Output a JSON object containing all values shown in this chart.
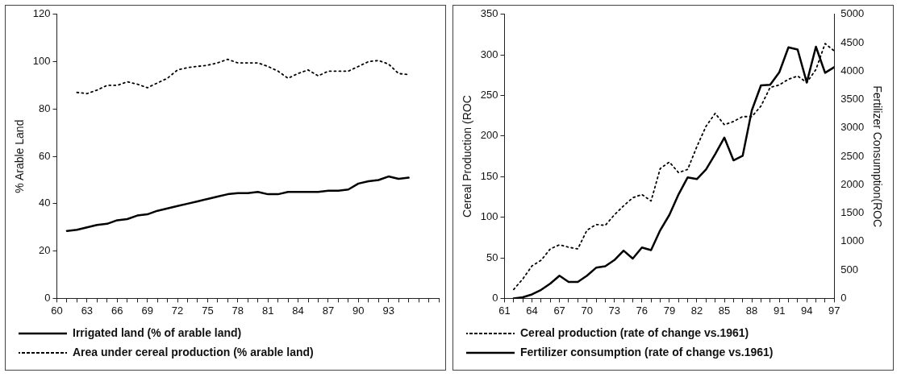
{
  "chart_data": [
    {
      "type": "line",
      "ylabel": "% Arable Land",
      "xlim": [
        60,
        98
      ],
      "ylim": [
        0,
        120
      ],
      "yticks": [
        0,
        20,
        40,
        60,
        80,
        100,
        120
      ],
      "xticks": [
        60,
        {
          "value": 61,
          "label": null
        },
        {
          "value": 62,
          "label": null
        },
        63,
        {
          "value": 64,
          "label": null
        },
        {
          "value": 65,
          "label": null
        },
        66,
        {
          "value": 67,
          "label": null
        },
        {
          "value": 68,
          "label": null
        },
        69,
        {
          "value": 70,
          "label": null
        },
        {
          "value": 71,
          "label": null
        },
        72,
        {
          "value": 73,
          "label": null
        },
        {
          "value": 74,
          "label": null
        },
        75,
        {
          "value": 76,
          "label": null
        },
        {
          "value": 77,
          "label": null
        },
        78,
        {
          "value": 79,
          "label": null
        },
        {
          "value": 80,
          "label": null
        },
        81,
        {
          "value": 82,
          "label": null
        },
        {
          "value": 83,
          "label": null
        },
        84,
        {
          "value": 85,
          "label": null
        },
        {
          "value": 86,
          "label": null
        },
        87,
        {
          "value": 88,
          "label": null
        },
        {
          "value": 89,
          "label": null
        },
        90,
        {
          "value": 91,
          "label": null
        },
        {
          "value": 92,
          "label": null
        },
        93,
        {
          "value": 94,
          "label": null
        },
        {
          "value": 95,
          "label": null
        },
        {
          "value": 96,
          "label": null
        },
        {
          "value": 97,
          "label": null
        },
        {
          "value": 98,
          "label": null
        }
      ],
      "grid": false,
      "legend": "bottom",
      "marker": "none",
      "series": [
        {
          "name": "Irrigated land (% of arable land)",
          "color": "#000000",
          "line_style": "solid",
          "x": [
            61,
            62,
            63,
            64,
            65,
            66,
            67,
            68,
            69,
            70,
            71,
            72,
            73,
            74,
            75,
            76,
            77,
            78,
            79,
            80,
            81,
            82,
            83,
            84,
            85,
            86,
            87,
            88,
            89,
            90,
            91,
            92,
            93,
            94,
            95
          ],
          "values": [
            28.5,
            29,
            30,
            31,
            31.5,
            33,
            33.5,
            35,
            35.5,
            37,
            38,
            39,
            40,
            41,
            42,
            43,
            44,
            44.5,
            44.5,
            45,
            44,
            44,
            45,
            45,
            45,
            45,
            45.5,
            45.5,
            46,
            48.5,
            49.5,
            50,
            51.5,
            50.5,
            51
          ]
        },
        {
          "name": "Area under cereal production (% arable land)",
          "color": "#000000",
          "line_style": "dotted",
          "x": [
            62,
            63,
            64,
            65,
            66,
            67,
            68,
            69,
            70,
            71,
            72,
            73,
            74,
            75,
            76,
            77,
            78,
            79,
            80,
            81,
            82,
            83,
            84,
            85,
            86,
            87,
            88,
            89,
            90,
            91,
            92,
            93,
            94,
            95
          ],
          "values": [
            87,
            86.5,
            88,
            90,
            90,
            91.5,
            90.5,
            89,
            91,
            93,
            96.5,
            97.5,
            98,
            98.5,
            99.5,
            101,
            99.5,
            99.5,
            99.5,
            98,
            96,
            93,
            95,
            96.5,
            94,
            96,
            96,
            96,
            98,
            100,
            100.5,
            99,
            95,
            94.5
          ]
        }
      ]
    },
    {
      "type": "line",
      "ylabel": "Cereal Production (ROC",
      "y2label": "Fertilizer Consumption(ROC",
      "xlim": [
        61,
        97
      ],
      "ylim": [
        0,
        350
      ],
      "yticks": [
        0,
        50,
        100,
        150,
        200,
        250,
        300,
        350
      ],
      "y2lim": [
        0,
        5000
      ],
      "y2ticks": [
        0,
        500,
        1000,
        1500,
        2000,
        2500,
        3000,
        3500,
        4000,
        4500,
        5000
      ],
      "xticks": [
        61,
        {
          "value": 62,
          "label": null
        },
        {
          "value": 63,
          "label": null
        },
        64,
        {
          "value": 65,
          "label": null
        },
        {
          "value": 66,
          "label": null
        },
        67,
        {
          "value": 68,
          "label": null
        },
        {
          "value": 69,
          "label": null
        },
        70,
        {
          "value": 71,
          "label": null
        },
        {
          "value": 72,
          "label": null
        },
        73,
        {
          "value": 74,
          "label": null
        },
        {
          "value": 75,
          "label": null
        },
        76,
        {
          "value": 77,
          "label": null
        },
        {
          "value": 78,
          "label": null
        },
        79,
        {
          "value": 80,
          "label": null
        },
        {
          "value": 81,
          "label": null
        },
        82,
        {
          "value": 83,
          "label": null
        },
        {
          "value": 84,
          "label": null
        },
        85,
        {
          "value": 86,
          "label": null
        },
        {
          "value": 87,
          "label": null
        },
        88,
        {
          "value": 89,
          "label": null
        },
        {
          "value": 90,
          "label": null
        },
        91,
        {
          "value": 92,
          "label": null
        },
        {
          "value": 93,
          "label": null
        },
        94,
        {
          "value": 95,
          "label": null
        },
        {
          "value": 96,
          "label": null
        },
        97
      ],
      "grid": false,
      "legend": "bottom",
      "marker": "none",
      "series": [
        {
          "name": "Cereal production (rate of change vs.1961)",
          "color": "#000000",
          "line_style": "dotted",
          "x": [
            62,
            63,
            64,
            65,
            66,
            67,
            68,
            69,
            70,
            71,
            72,
            73,
            74,
            75,
            76,
            77,
            78,
            79,
            80,
            81,
            82,
            83,
            84,
            85,
            86,
            87,
            88,
            89,
            90,
            91,
            92,
            93,
            94,
            95,
            96,
            97
          ],
          "values": [
            11,
            24,
            40,
            47,
            61,
            66,
            63,
            61,
            84,
            91,
            90,
            103,
            114,
            124,
            128,
            120,
            160,
            168,
            155,
            159,
            187,
            212,
            228,
            214,
            218,
            224,
            224,
            237,
            260,
            263,
            270,
            274,
            266,
            282,
            314,
            305
          ]
        },
        {
          "name": "Fertilizer consumption (rate of change vs.1961)",
          "color": "#000000",
          "line_style": "solid",
          "axis": "y2",
          "x": [
            62,
            63,
            64,
            65,
            66,
            67,
            68,
            69,
            70,
            71,
            72,
            73,
            74,
            75,
            76,
            77,
            78,
            79,
            80,
            81,
            82,
            83,
            84,
            85,
            86,
            87,
            88,
            89,
            90,
            91,
            92,
            93,
            94,
            95,
            96,
            97
          ],
          "values": [
            0,
            20,
            70,
            150,
            260,
            400,
            290,
            290,
            400,
            540,
            565,
            675,
            840,
            700,
            895,
            850,
            1200,
            1470,
            1830,
            2130,
            2100,
            2270,
            2540,
            2830,
            2430,
            2510,
            3310,
            3750,
            3760,
            3980,
            4420,
            4380,
            3800,
            4430,
            3970,
            4070
          ]
        }
      ]
    }
  ]
}
